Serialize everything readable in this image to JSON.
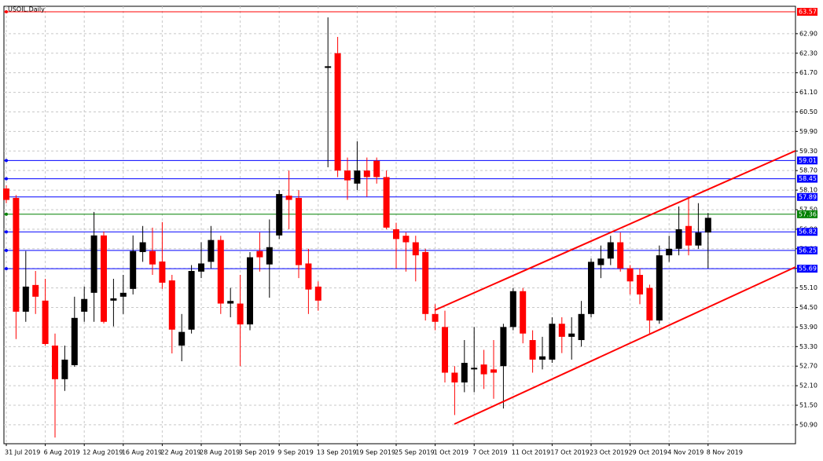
{
  "chart_data": {
    "type": "candlestick",
    "title": "USOIL,Daily",
    "categories": [
      "31 Jul 2019",
      null,
      null,
      null,
      "6 Aug 2019",
      null,
      null,
      null,
      "12 Aug 2019",
      null,
      null,
      null,
      "16 Aug 2019",
      null,
      null,
      null,
      "22 Aug 2019",
      null,
      null,
      null,
      "28 Aug 2019",
      null,
      null,
      null,
      "3 Sep 2019",
      null,
      null,
      null,
      "9 Sep 2019",
      null,
      null,
      null,
      "13 Sep 2019",
      null,
      null,
      null,
      "19 Sep 2019",
      null,
      null,
      null,
      "25 Sep 2019",
      null,
      null,
      null,
      "1 Oct 2019",
      null,
      null,
      null,
      "7 Oct 2019",
      null,
      null,
      null,
      "11 Oct 2019",
      null,
      null,
      null,
      "17 Oct 2019",
      null,
      null,
      null,
      "23 Oct 2019",
      null,
      null,
      null,
      "29 Oct 2019",
      null,
      null,
      null,
      "4 Nov 2019",
      null,
      null,
      null,
      "8 Nov 2019"
    ],
    "open": [
      58.15,
      57.86,
      54.37,
      55.19,
      54.71,
      53.33,
      52.3,
      52.73,
      54.37,
      54.95,
      56.71,
      54.71,
      54.83,
      55.07,
      56.2,
      56.23,
      55.91,
      55.33,
      53.33,
      53.82,
      55.6,
      55.9,
      56.57,
      54.62,
      54.62,
      53.98,
      56.23,
      55.82,
      56.71,
      57.93,
      57.86,
      55.85,
      55.14,
      61.85,
      62.3,
      58.7,
      58.3,
      58.7,
      59.0,
      58.5,
      56.9,
      56.7,
      56.5,
      56.2,
      54.3,
      53.9,
      52.5,
      52.2,
      52.6,
      52.75,
      52.6,
      52.7,
      53.9,
      55.0,
      53.5,
      52.9,
      52.9,
      54.0,
      53.6,
      53.5,
      54.3,
      55.8,
      56.0,
      56.5,
      55.7,
      55.5,
      55.1,
      54.1,
      56.1,
      56.3,
      57.0,
      56.4,
      56.8
    ],
    "high": [
      58.25,
      57.95,
      56.23,
      55.62,
      55.38,
      53.7,
      53.33,
      54.83,
      55.14,
      57.43,
      56.83,
      55.38,
      55.5,
      56.71,
      57.0,
      56.95,
      57.12,
      55.5,
      54.3,
      55.8,
      56.5,
      57.0,
      56.7,
      55.1,
      55.5,
      56.2,
      56.8,
      57.2,
      58.1,
      58.7,
      58.1,
      56.3,
      55.3,
      63.4,
      62.8,
      59.1,
      59.6,
      59.1,
      59.1,
      58.7,
      57.1,
      56.8,
      56.7,
      56.3,
      54.6,
      54.4,
      52.7,
      53.5,
      53.9,
      53.2,
      53.5,
      54.0,
      55.1,
      55.1,
      53.8,
      53.6,
      54.2,
      54.2,
      54.2,
      54.7,
      56.0,
      56.4,
      56.7,
      56.8,
      55.8,
      55.7,
      55.2,
      56.4,
      56.7,
      57.6,
      57.9,
      57.7,
      57.4
    ],
    "low": [
      57.7,
      53.53,
      54.06,
      54.3,
      53.33,
      50.51,
      51.94,
      52.68,
      54.06,
      54.06,
      54.01,
      53.92,
      54.3,
      54.9,
      55.9,
      55.5,
      55.07,
      53.09,
      52.85,
      53.7,
      55.4,
      55.7,
      54.3,
      54.2,
      52.7,
      53.8,
      55.6,
      54.8,
      56.6,
      56.9,
      55.4,
      54.3,
      54.4,
      58.8,
      58.5,
      57.8,
      58.1,
      57.9,
      58.3,
      56.9,
      55.7,
      55.6,
      55.3,
      54.1,
      53.8,
      52.2,
      51.2,
      51.9,
      51.9,
      52.0,
      51.7,
      51.4,
      53.8,
      53.4,
      52.5,
      52.6,
      52.8,
      53.1,
      52.9,
      53.3,
      54.2,
      55.4,
      55.8,
      55.6,
      54.9,
      54.6,
      53.7,
      54.0,
      55.9,
      56.1,
      56.1,
      56.3,
      55.7
    ],
    "close": [
      57.8,
      54.37,
      55.14,
      54.83,
      53.38,
      52.3,
      52.9,
      54.18,
      54.76,
      56.71,
      54.06,
      54.78,
      54.95,
      56.23,
      56.5,
      55.82,
      55.26,
      53.82,
      53.75,
      55.62,
      55.85,
      56.57,
      54.62,
      54.7,
      53.98,
      56.04,
      56.04,
      56.35,
      57.98,
      57.8,
      55.8,
      55.05,
      54.71,
      61.9,
      58.7,
      58.4,
      58.7,
      58.5,
      58.5,
      56.95,
      56.6,
      56.5,
      56.1,
      54.3,
      54.06,
      52.5,
      52.2,
      52.8,
      52.65,
      52.45,
      52.5,
      53.9,
      55.0,
      53.7,
      52.9,
      53.0,
      54.0,
      53.6,
      53.7,
      54.3,
      55.9,
      56.0,
      56.5,
      55.7,
      55.3,
      54.9,
      54.1,
      56.1,
      56.3,
      56.9,
      56.4,
      56.8,
      57.25
    ],
    "up_color": "#000000",
    "down_color": "#ff0000",
    "ylim": [
      50.32,
      63.74
    ],
    "yticks": [
      {
        "value": 50.9,
        "label": "50.90"
      },
      {
        "value": 51.5,
        "label": "51.50"
      },
      {
        "value": 52.1,
        "label": "52.10"
      },
      {
        "value": 52.7,
        "label": "52.70"
      },
      {
        "value": 53.3,
        "label": "53.30"
      },
      {
        "value": 53.9,
        "label": "53.90"
      },
      {
        "value": 54.5,
        "label": "54.50"
      },
      {
        "value": 55.1,
        "label": "55.10"
      },
      {
        "value": 55.7,
        "label": "55.70"
      },
      {
        "value": 56.3,
        "label": "56.30"
      },
      {
        "value": 56.9,
        "label": "56.90"
      },
      {
        "value": 57.5,
        "label": "57.50"
      },
      {
        "value": 58.1,
        "label": "58.10"
      },
      {
        "value": 58.7,
        "label": "58.70"
      },
      {
        "value": 59.3,
        "label": "59.30"
      },
      {
        "value": 59.9,
        "label": "59.90"
      },
      {
        "value": 60.5,
        "label": "60.50"
      },
      {
        "value": 61.1,
        "label": "61.10"
      },
      {
        "value": 61.7,
        "label": "61.70"
      },
      {
        "value": 62.3,
        "label": "62.30"
      },
      {
        "value": 62.9,
        "label": "62.90"
      }
    ],
    "grid": true,
    "levels": [
      {
        "value": 63.57,
        "color": "#ff0000"
      },
      {
        "value": 59.01,
        "color": "#0000ff"
      },
      {
        "value": 58.45,
        "color": "#0000ff"
      },
      {
        "value": 57.89,
        "color": "#0000ff"
      },
      {
        "value": 57.36,
        "color": "#008000"
      },
      {
        "value": 56.82,
        "color": "#0000ff"
      },
      {
        "value": 56.25,
        "color": "#0000ff"
      },
      {
        "value": 55.69,
        "color": "#0000ff"
      }
    ]
  }
}
